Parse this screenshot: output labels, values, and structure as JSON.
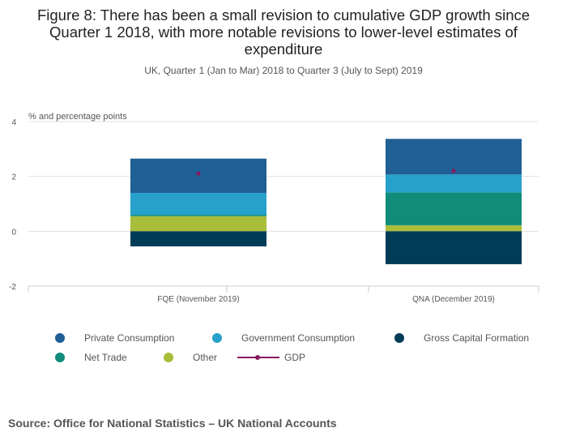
{
  "title": "Figure 8: There has been a small revision to cumulative GDP growth since Quarter 1 2018, with more notable revisions to lower-level estimates of expenditure",
  "subtitle": "UK, Quarter 1 (Jan to Mar) 2018 to Quarter 3 (July to Sept) 2019",
  "source": "Source:  Office for National Statistics – UK National Accounts",
  "chart_data": {
    "type": "bar",
    "stacked": true,
    "ylabel": "% and percentage points",
    "ylim": [
      -2,
      4
    ],
    "yticks": [
      4,
      2,
      0,
      -2
    ],
    "grid": true,
    "legend_position": "bottom",
    "categories": [
      "FQE (November 2019)",
      "QNA (December 2019)"
    ],
    "series": [
      {
        "name": "Private Consumption",
        "color": "#206095",
        "values": [
          1.25,
          1.3
        ]
      },
      {
        "name": "Government Consumption",
        "color": "#27a0cc",
        "values": [
          0.8,
          0.65
        ]
      },
      {
        "name": "Gross Capital Formation",
        "color": "#003c57",
        "values": [
          -0.55,
          -1.2
        ]
      },
      {
        "name": "Net Trade",
        "color": "#118c7b",
        "values": [
          0.05,
          1.2
        ]
      },
      {
        "name": "Other",
        "color": "#a8bd3a",
        "values": [
          0.55,
          0.22
        ]
      }
    ],
    "stack_order": [
      "Other",
      "Net Trade",
      "Government Consumption",
      "Private Consumption"
    ],
    "line": {
      "name": "GDP",
      "color": "#871a5b",
      "values": [
        2.1,
        2.2
      ]
    }
  }
}
